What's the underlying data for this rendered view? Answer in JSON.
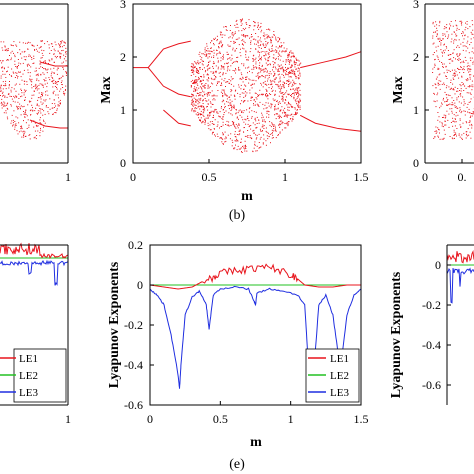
{
  "figure": {
    "panel_labels": [
      "(b)",
      "(e)"
    ]
  },
  "colors": {
    "red": "#e8141c",
    "green": "#22c022",
    "blue": "#1f2ee0",
    "axis": "#000000"
  },
  "chart_data": [
    {
      "id": "left-top-partial",
      "type": "scatter",
      "xlabel": "",
      "ylabel": "",
      "xticks": [
        "1"
      ],
      "xlim": [
        0,
        1
      ],
      "description_color": "red"
    },
    {
      "id": "bifurcation-b",
      "type": "scatter",
      "title": "",
      "xlabel": "m",
      "ylabel": "Max",
      "xlim": [
        0,
        1.5
      ],
      "ylim": [
        0,
        3
      ],
      "xticks": [
        "0",
        "0.5",
        "1",
        "1.5"
      ],
      "yticks": [
        "0",
        "1",
        "2",
        "3"
      ],
      "grid": false,
      "branches": {
        "period1_pre": [
          [
            0.0,
            1.8
          ],
          [
            0.1,
            1.8
          ]
        ],
        "upper_period2": [
          [
            0.1,
            1.8
          ],
          [
            0.2,
            2.15
          ],
          [
            0.3,
            2.25
          ],
          [
            0.38,
            2.3
          ]
        ],
        "lower_period2": [
          [
            0.1,
            1.8
          ],
          [
            0.2,
            1.45
          ],
          [
            0.3,
            1.3
          ],
          [
            0.38,
            1.25
          ]
        ],
        "outer_upper": [
          [
            0.2,
            1.0
          ],
          [
            0.3,
            0.75
          ],
          [
            0.38,
            0.7
          ]
        ],
        "right_upper": [
          [
            1.1,
            1.8
          ],
          [
            1.25,
            1.9
          ],
          [
            1.4,
            2.0
          ],
          [
            1.5,
            2.1
          ]
        ],
        "right_lower": [
          [
            1.1,
            0.9
          ],
          [
            1.2,
            0.75
          ],
          [
            1.35,
            0.65
          ],
          [
            1.5,
            0.6
          ]
        ]
      },
      "chaotic_region": {
        "x": [
          0.38,
          1.1
        ],
        "y_top": 2.75,
        "y_bottom": 0.2
      }
    },
    {
      "id": "right-top-partial",
      "type": "scatter",
      "ylabel": "Max",
      "yticks": [
        "0",
        "1",
        "2",
        "3"
      ],
      "xticks": [
        "0",
        "0."
      ],
      "ylim": [
        0,
        3
      ]
    },
    {
      "id": "left-bottom-partial",
      "type": "line",
      "xticks": [
        "1"
      ],
      "legend": [
        "LE1",
        "LE2",
        "LE3"
      ]
    },
    {
      "id": "lyapunov-e",
      "type": "line",
      "xlabel": "m",
      "ylabel": "Lyapunov Exponents",
      "xlim": [
        0,
        1.5
      ],
      "ylim": [
        -0.6,
        0.2
      ],
      "xticks": [
        "0",
        "0.5",
        "1",
        "1.5"
      ],
      "yticks": [
        "0.2",
        "0",
        "-0.2",
        "-0.4",
        "-0.6"
      ],
      "legend_position": "bottom-right",
      "series": [
        {
          "name": "LE1",
          "color": "red",
          "x": [
            0,
            0.1,
            0.2,
            0.3,
            0.38,
            0.45,
            0.5,
            0.6,
            0.7,
            0.8,
            0.9,
            1.0,
            1.05,
            1.1,
            1.2,
            1.3,
            1.4,
            1.5
          ],
          "y": [
            0,
            -0.01,
            -0.02,
            -0.01,
            0.02,
            0.04,
            0.06,
            0.07,
            0.08,
            0.09,
            0.08,
            0.05,
            0.03,
            0.0,
            -0.01,
            -0.01,
            0.0,
            0.0
          ]
        },
        {
          "name": "LE2",
          "color": "green",
          "x": [
            0,
            1.5
          ],
          "y": [
            0,
            0
          ]
        },
        {
          "name": "LE3",
          "color": "blue",
          "x": [
            0,
            0.05,
            0.1,
            0.15,
            0.2,
            0.21,
            0.22,
            0.25,
            0.3,
            0.35,
            0.4,
            0.42,
            0.45,
            0.5,
            0.6,
            0.7,
            0.74,
            0.75,
            0.76,
            0.85,
            0.95,
            1.05,
            1.1,
            1.12,
            1.15,
            1.17,
            1.2,
            1.25,
            1.3,
            1.33,
            1.35,
            1.4,
            1.45,
            1.5
          ],
          "y": [
            -0.02,
            -0.05,
            -0.1,
            -0.25,
            -0.45,
            -0.52,
            -0.4,
            -0.15,
            -0.06,
            -0.03,
            -0.1,
            -0.22,
            -0.05,
            -0.02,
            -0.01,
            -0.02,
            -0.08,
            -0.1,
            -0.04,
            -0.02,
            -0.03,
            -0.05,
            -0.1,
            -0.33,
            -0.48,
            -0.38,
            -0.1,
            -0.05,
            -0.15,
            -0.3,
            -0.45,
            -0.15,
            -0.05,
            -0.02
          ]
        }
      ]
    },
    {
      "id": "right-bottom-partial",
      "type": "line",
      "ylabel": "Lyapunov Exponents",
      "yticks": [
        "0",
        "-0.2",
        "-0.4",
        "-0.6"
      ],
      "ylim": [
        -0.7,
        0.1
      ]
    }
  ]
}
